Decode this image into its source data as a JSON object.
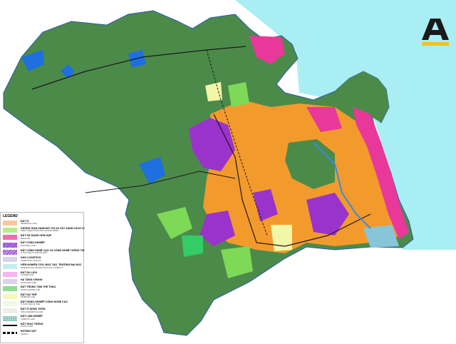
{
  "map": {
    "colors": {
      "sea": "#a9eef2",
      "forest": "#4c8a4a",
      "residential": "#f39a2c",
      "industrial": "#9a33cc",
      "mixed_use": "#e8389a",
      "green_space": "#7ed957",
      "sports": "#33cc66",
      "water": "#1e6fe0",
      "reserve": "#f2f6a6"
    }
  },
  "logo": {
    "letter": "A",
    "bar_color": "#f6c11c",
    "letter_color": "#1a1a1a"
  },
  "legend": {
    "title": "LEGEND",
    "items": [
      {
        "vi": "ĐẤT Ở",
        "en": "RESIDENTIAL LAND",
        "color": "#f9c79a",
        "pattern": "solid"
      },
      {
        "vi": "KHÔNG GIAN XANH ĐÔ THỊ VÀ CÂY XANH CÁCH LY",
        "en": "URBAN GREEN SPACE AND ISOLATED GREEN",
        "color": "#b6ec8c",
        "pattern": "solid"
      },
      {
        "vi": "ĐẤT SỬ DỤNG HỖN HỢP",
        "en": "MIXED USE",
        "color": "#f06db4",
        "pattern": "solid"
      },
      {
        "vi": "ĐẤT CÔNG NGHIỆP",
        "en": "INDUSTRIAL LAND",
        "color": "#b27ae0",
        "pattern": "hatch"
      },
      {
        "vi": "ĐẤT CÔNG NGHỆ CAO VÀ CÔNG NGHỆ THÔNG TIN",
        "en": "HI-TECH AND IT COMPLEX PARK",
        "color": "#c79be8",
        "pattern": "hatch"
      },
      {
        "vi": "KHO LOGISTICS",
        "en": "WAREHOUSE LOGISTICS",
        "color": "#d6d3ea",
        "pattern": "solid"
      },
      {
        "vi": "VIỆN NGHIÊN CỨU, ĐÀO TẠO, TRƯỜNG ĐẠI HỌC",
        "en": "RESEARCH AND TRAINING INSTITUTE, UNIVERSITY",
        "color": "#c6ecef",
        "pattern": "solid"
      },
      {
        "vi": "ĐẤT DU LỊCH",
        "en": "TOURISM LAND",
        "color": "#f7b3f2",
        "pattern": "solid"
      },
      {
        "vi": "HẠ TẦNG CHUNG",
        "en": "INFRASTRUCTURE",
        "color": "#ddd2ee",
        "pattern": "solid"
      },
      {
        "vi": "ĐẤT TRUNG TÂM THỂ THAO",
        "en": "SPORTS CENTRE LAND",
        "color": "#8fdc93",
        "pattern": "solid"
      },
      {
        "vi": "ĐẤT DỰ TRỮ",
        "en": "RESERVED LAND",
        "color": "#f5f9b3",
        "pattern": "solid"
      },
      {
        "vi": "ĐẤT NÔNG NGHIỆP CÔNG NGHỆ CAO",
        "en": "HI-TECH AGRICULTURE",
        "color": "#eef7e2",
        "pattern": "dots"
      },
      {
        "vi": "ĐẤT Ở NÔNG THÔN",
        "en": "RURAL RESIDENTIAL LAND",
        "color": "#eeeee2",
        "pattern": "solid"
      },
      {
        "vi": "ĐẤT LÂM NGHIỆP",
        "en": "FORESTRY LAND",
        "color": "#8fc7c0",
        "pattern": "dots"
      },
      {
        "vi": "ĐẤT GIAO THÔNG",
        "en": "TRAFFIC LAND",
        "color": "#111111",
        "pattern": "line"
      },
      {
        "vi": "ĐƯỜNG SẮT",
        "en": "RAILWAY",
        "color": "#111111",
        "pattern": "dash"
      }
    ]
  }
}
